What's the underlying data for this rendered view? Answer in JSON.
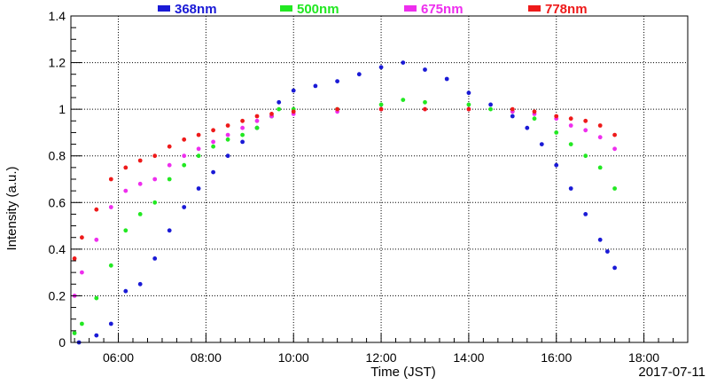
{
  "chart_data": {
    "type": "scatter",
    "date_label": "2017-07-11",
    "xlabel": "Time (JST)",
    "ylabel": "Intensity (a.u.)",
    "xlim": [
      "04:55",
      "19:00"
    ],
    "ylim": [
      0,
      1.4
    ],
    "x_ticks": [
      "06:00",
      "08:00",
      "10:00",
      "12:00",
      "14:00",
      "16:00",
      "18:00"
    ],
    "y_ticks": [
      "0",
      "0.2",
      "0.4",
      "0.6",
      "0.8",
      "1",
      "1.2",
      "1.4"
    ],
    "grid": true,
    "legend_position": "top",
    "series": [
      {
        "name": "368nm",
        "color": "#1a1ad6",
        "x": [
          "05:06",
          "05:30",
          "05:50",
          "06:10",
          "06:30",
          "06:50",
          "07:10",
          "07:30",
          "07:50",
          "08:10",
          "08:30",
          "08:50",
          "09:10",
          "09:30",
          "09:40",
          "10:00",
          "10:30",
          "11:00",
          "11:30",
          "12:00",
          "12:30",
          "13:00",
          "13:30",
          "14:00",
          "14:30",
          "15:00",
          "15:20",
          "15:40",
          "16:00",
          "16:20",
          "16:40",
          "17:00",
          "17:10",
          "17:20"
        ],
        "y": [
          0.0,
          0.03,
          0.08,
          0.22,
          0.25,
          0.36,
          0.48,
          0.58,
          0.66,
          0.73,
          0.8,
          0.86,
          0.92,
          0.97,
          1.03,
          1.08,
          1.1,
          1.12,
          1.15,
          1.18,
          1.2,
          1.17,
          1.13,
          1.07,
          1.02,
          0.97,
          0.92,
          0.85,
          0.76,
          0.66,
          0.55,
          0.44,
          0.39,
          0.32
        ]
      },
      {
        "name": "500nm",
        "color": "#22e822",
        "x": [
          "05:00",
          "05:10",
          "05:30",
          "05:50",
          "06:10",
          "06:30",
          "06:50",
          "07:10",
          "07:30",
          "07:50",
          "08:10",
          "08:30",
          "08:50",
          "09:10",
          "09:30",
          "09:40",
          "10:00",
          "11:00",
          "12:00",
          "12:30",
          "13:00",
          "14:00",
          "14:30",
          "15:00",
          "15:30",
          "16:00",
          "16:20",
          "16:40",
          "17:00",
          "17:20"
        ],
        "y": [
          0.04,
          0.08,
          0.19,
          0.33,
          0.48,
          0.55,
          0.6,
          0.7,
          0.76,
          0.8,
          0.84,
          0.87,
          0.89,
          0.92,
          0.97,
          1.0,
          1.0,
          1.0,
          1.02,
          1.04,
          1.03,
          1.02,
          1.0,
          0.99,
          0.96,
          0.9,
          0.85,
          0.8,
          0.75,
          0.66
        ]
      },
      {
        "name": "675nm",
        "color": "#ee2eee",
        "x": [
          "05:00",
          "05:10",
          "05:30",
          "05:50",
          "06:10",
          "06:30",
          "06:50",
          "07:10",
          "07:30",
          "07:50",
          "08:10",
          "08:30",
          "08:50",
          "09:10",
          "09:30",
          "10:00",
          "11:00",
          "12:00",
          "13:00",
          "14:00",
          "15:00",
          "15:30",
          "16:00",
          "16:20",
          "16:40",
          "17:00",
          "17:20"
        ],
        "y": [
          0.2,
          0.3,
          0.44,
          0.58,
          0.65,
          0.68,
          0.7,
          0.76,
          0.8,
          0.83,
          0.86,
          0.89,
          0.92,
          0.95,
          0.97,
          0.98,
          0.99,
          1.0,
          1.0,
          1.0,
          0.99,
          0.98,
          0.96,
          0.93,
          0.91,
          0.88,
          0.83
        ]
      },
      {
        "name": "778nm",
        "color": "#ee1a1a",
        "x": [
          "05:00",
          "05:10",
          "05:30",
          "05:50",
          "06:10",
          "06:30",
          "06:50",
          "07:10",
          "07:30",
          "07:50",
          "08:10",
          "08:30",
          "08:50",
          "09:10",
          "09:30",
          "10:00",
          "11:00",
          "12:00",
          "13:00",
          "14:00",
          "15:00",
          "15:30",
          "16:00",
          "16:20",
          "16:40",
          "17:00",
          "17:20"
        ],
        "y": [
          0.36,
          0.45,
          0.57,
          0.7,
          0.75,
          0.78,
          0.8,
          0.84,
          0.87,
          0.89,
          0.91,
          0.93,
          0.95,
          0.97,
          0.98,
          0.99,
          1.0,
          1.0,
          1.0,
          1.0,
          1.0,
          0.99,
          0.97,
          0.96,
          0.95,
          0.93,
          0.89
        ]
      }
    ]
  }
}
